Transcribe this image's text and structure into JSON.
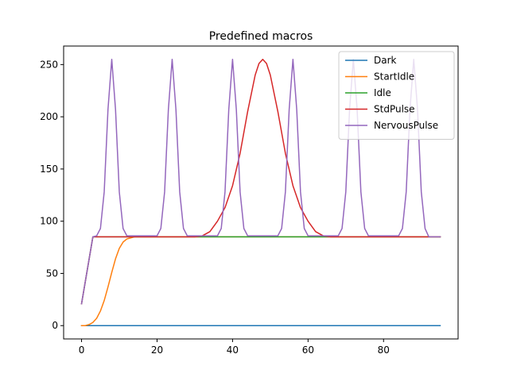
{
  "chart_data": {
    "type": "line",
    "title": "Predefined macros",
    "xlabel": "",
    "ylabel": "",
    "xlim": [
      -4.75,
      99.75
    ],
    "ylim": [
      -12.75,
      267.75
    ],
    "xticks": [
      0,
      20,
      40,
      60,
      80
    ],
    "yticks": [
      0,
      50,
      100,
      150,
      200,
      250
    ],
    "grid": false,
    "legend_position": "top-right",
    "series": [
      {
        "name": "Dark",
        "color": "#1f77b4",
        "x": [
          0,
          95
        ],
        "y": [
          0,
          0
        ]
      },
      {
        "name": "StartIdle",
        "color": "#ff7f0e",
        "x": [
          0,
          1,
          2,
          3,
          4,
          5,
          6,
          7,
          8,
          9,
          10,
          11,
          12,
          13,
          14,
          15,
          16,
          95
        ],
        "y": [
          0,
          0,
          1,
          3,
          7,
          14,
          24,
          37,
          51,
          64,
          74,
          80,
          83,
          84,
          85,
          85,
          85,
          85
        ]
      },
      {
        "name": "Idle",
        "color": "#2ca02c",
        "x": [
          0,
          3,
          95
        ],
        "y": [
          21,
          85,
          85
        ]
      },
      {
        "name": "StdPulse",
        "color": "#d62728",
        "x": [
          0,
          3,
          30,
          32,
          34,
          36,
          38,
          40,
          42,
          44,
          46,
          47,
          48,
          49,
          50,
          52,
          54,
          56,
          58,
          60,
          62,
          64,
          66,
          95
        ],
        "y": [
          21,
          85,
          85,
          86,
          90,
          100,
          113,
          134,
          165,
          205,
          240,
          251,
          255,
          251,
          240,
          205,
          165,
          134,
          113,
          100,
          90,
          86,
          85,
          85
        ]
      },
      {
        "name": "NervousPulse",
        "color": "#9467bd",
        "x": [
          0,
          3,
          4,
          5,
          6,
          7,
          8,
          9,
          10,
          11,
          12,
          20,
          21,
          22,
          23,
          24,
          25,
          26,
          27,
          28,
          36,
          37,
          38,
          39,
          40,
          41,
          42,
          43,
          44,
          52,
          53,
          54,
          55,
          56,
          57,
          58,
          59,
          60,
          68,
          69,
          70,
          71,
          72,
          73,
          74,
          75,
          76,
          84,
          85,
          86,
          87,
          88,
          89,
          90,
          91,
          92,
          95
        ],
        "y": [
          21,
          85,
          86,
          93,
          128,
          207,
          255,
          207,
          128,
          93,
          86,
          86,
          93,
          128,
          207,
          255,
          207,
          128,
          93,
          86,
          86,
          93,
          128,
          207,
          255,
          207,
          128,
          93,
          86,
          86,
          93,
          128,
          207,
          255,
          207,
          128,
          93,
          86,
          86,
          93,
          128,
          207,
          255,
          207,
          128,
          93,
          86,
          86,
          93,
          128,
          207,
          255,
          207,
          128,
          93,
          85,
          85
        ]
      }
    ]
  }
}
